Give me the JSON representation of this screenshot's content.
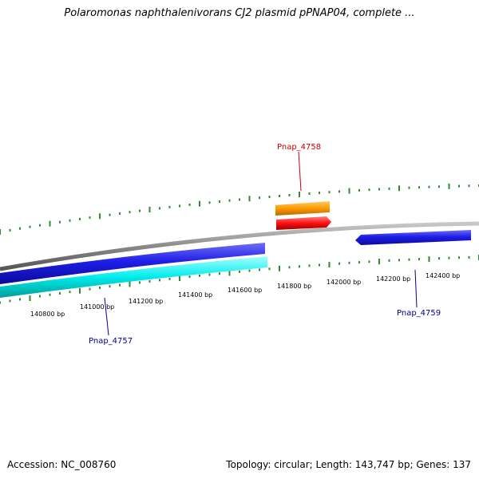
{
  "title": "Polaromonas naphthalenivorans CJ2 plasmid pPNAP04, complete ...",
  "footer": {
    "accession": "Accession: NC_008760",
    "summary": "Topology: circular; Length: 143,747 bp; Genes: 137"
  },
  "ticks": [
    {
      "label": "140800 bp"
    },
    {
      "label": "141000 bp"
    },
    {
      "label": "141200 bp"
    },
    {
      "label": "141400 bp"
    },
    {
      "label": "141600 bp"
    },
    {
      "label": "141800 bp"
    },
    {
      "label": "142000 bp"
    },
    {
      "label": "142200 bp"
    },
    {
      "label": "142400 bp"
    }
  ],
  "genes": [
    {
      "name": "Pnap_4757",
      "color": "#00008b"
    },
    {
      "name": "Pnap_4758",
      "color": "#cc0000"
    },
    {
      "name": "Pnap_4759",
      "color": "#00008b"
    }
  ],
  "colors": {
    "backbone": "#808080",
    "tick": "#2e8b2e",
    "blue_feature": "#1a1ae6",
    "cyan_feature": "#00e5e5",
    "orange_feature": "#ff9900",
    "red_feature": "#ff1111"
  }
}
